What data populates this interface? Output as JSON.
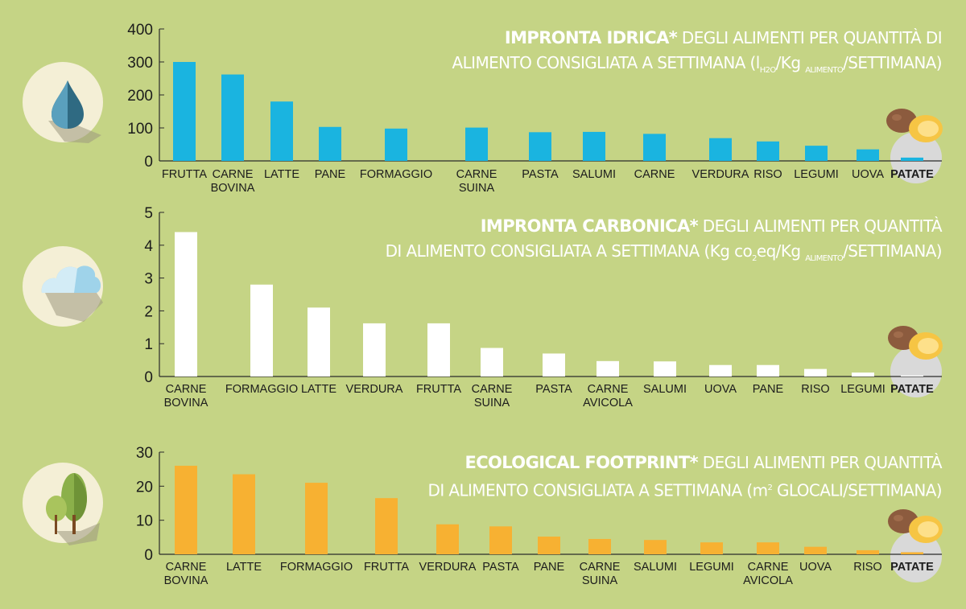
{
  "colors": {
    "background": "#c5d485",
    "water_bar": "#1ab4e0",
    "carbon_bar": "#ffffff",
    "eco_bar": "#f7b132",
    "axis": "#2a2a2a",
    "text": "#1c1c1c",
    "icon_circle": "#f4efd6",
    "patate_highlight": "#d9d9d9"
  },
  "titles": {
    "water": {
      "bold": "IMPRONTA IDRICA*",
      "rest": " DEGLI ALIMENTI PER QUANTITÀ DI",
      "line2_prefix": "ALIMENTO CONSIGLIATA A SETTIMANA (l",
      "sub1": "H2O",
      "mid": "/Kg ",
      "sub2": "ALIMENTO",
      "end": "/SETTIMANA)"
    },
    "carbon": {
      "bold": "IMPRONTA CARBONICA*",
      "rest": " DEGLI ALIMENTI PER QUANTITÀ",
      "line2_prefix": "DI ALIMENTO CONSIGLIATA A SETTIMANA (Kg co",
      "sub1": "2",
      "mid": "eq/Kg ",
      "sub2": "ALIMENTO",
      "end": "/SETTIMANA)"
    },
    "eco": {
      "bold": "ECOLOGICAL FOOTPRINT*",
      "rest": " DEGLI ALIMENTI PER QUANTITÀ",
      "line2_prefix": "DI ALIMENTO CONSIGLIATA A SETTIMANA (m",
      "sup": "2",
      "end": " GLOCALI/SETTIMANA)"
    }
  },
  "icons": {
    "water": "water-drop-icon",
    "carbon": "cloud-icon",
    "eco": "trees-icon",
    "patate": "potato-icon"
  },
  "chart_data": [
    {
      "type": "bar",
      "title": "IMPRONTA IDRICA* DEGLI ALIMENTI PER QUANTITÀ DI ALIMENTO CONSIGLIATA A SETTIMANA (lH2O/Kg ALIMENTO/SETTIMANA)",
      "categories": [
        "FRUTTA",
        "CARNE BOVINA",
        "LATTE",
        "PANE",
        "FORMAGGIO",
        "CARNE SUINA",
        "PASTA",
        "SALUMI",
        "CARNE",
        "VERDURA",
        "RISO",
        "LEGUMI",
        "UOVA",
        "PATATE"
      ],
      "values": [
        300,
        262,
        180,
        103,
        98,
        101,
        87,
        88,
        82,
        69,
        59,
        46,
        35,
        10
      ],
      "ylim": [
        0,
        400
      ],
      "yticks": [
        0,
        100,
        200,
        300,
        400
      ],
      "highlight": "PATATE",
      "xlabel": "",
      "ylabel": ""
    },
    {
      "type": "bar",
      "title": "IMPRONTA CARBONICA* DEGLI ALIMENTI PER QUANTITÀ DI ALIMENTO CONSIGLIATA A SETTIMANA (Kg co2eq/Kg ALIMENTO/SETTIMANA)",
      "categories": [
        "CARNE BOVINA",
        "FORMAGGIO",
        "LATTE",
        "VERDURA",
        "FRUTTA",
        "CARNE SUINA",
        "PASTA",
        "CARNE AVICOLA",
        "SALUMI",
        "UOVA",
        "PANE",
        "RISO",
        "LEGUMI",
        "PATATE"
      ],
      "values": [
        4.4,
        2.8,
        2.1,
        1.62,
        1.62,
        0.87,
        0.7,
        0.47,
        0.46,
        0.35,
        0.35,
        0.23,
        0.12,
        0.03
      ],
      "ylim": [
        0,
        5
      ],
      "yticks": [
        0,
        1,
        2,
        3,
        4,
        5
      ],
      "highlight": "PATATE",
      "xlabel": "",
      "ylabel": ""
    },
    {
      "type": "bar",
      "title": "ECOLOGICAL FOOTPRINT* DEGLI ALIMENTI PER QUANTITÀ DI ALIMENTO CONSIGLIATA A SETTIMANA (m2 GLOCALI/SETTIMANA)",
      "categories": [
        "CARNE BOVINA",
        "LATTE",
        "FORMAGGIO",
        "FRUTTA",
        "VERDURA",
        "PASTA",
        "PANE",
        "CARNE SUINA",
        "SALUMI",
        "LEGUMI",
        "CARNE AVICOLA",
        "UOVA",
        "RISO",
        "PATATE"
      ],
      "values": [
        26,
        23.5,
        21,
        16.5,
        8.8,
        8.2,
        5.2,
        4.5,
        4.2,
        3.5,
        3.5,
        2.2,
        1.2,
        0.6
      ],
      "ylim": [
        0,
        30
      ],
      "yticks": [
        0,
        10,
        20,
        30
      ],
      "highlight": "PATATE",
      "xlabel": "",
      "ylabel": ""
    }
  ]
}
